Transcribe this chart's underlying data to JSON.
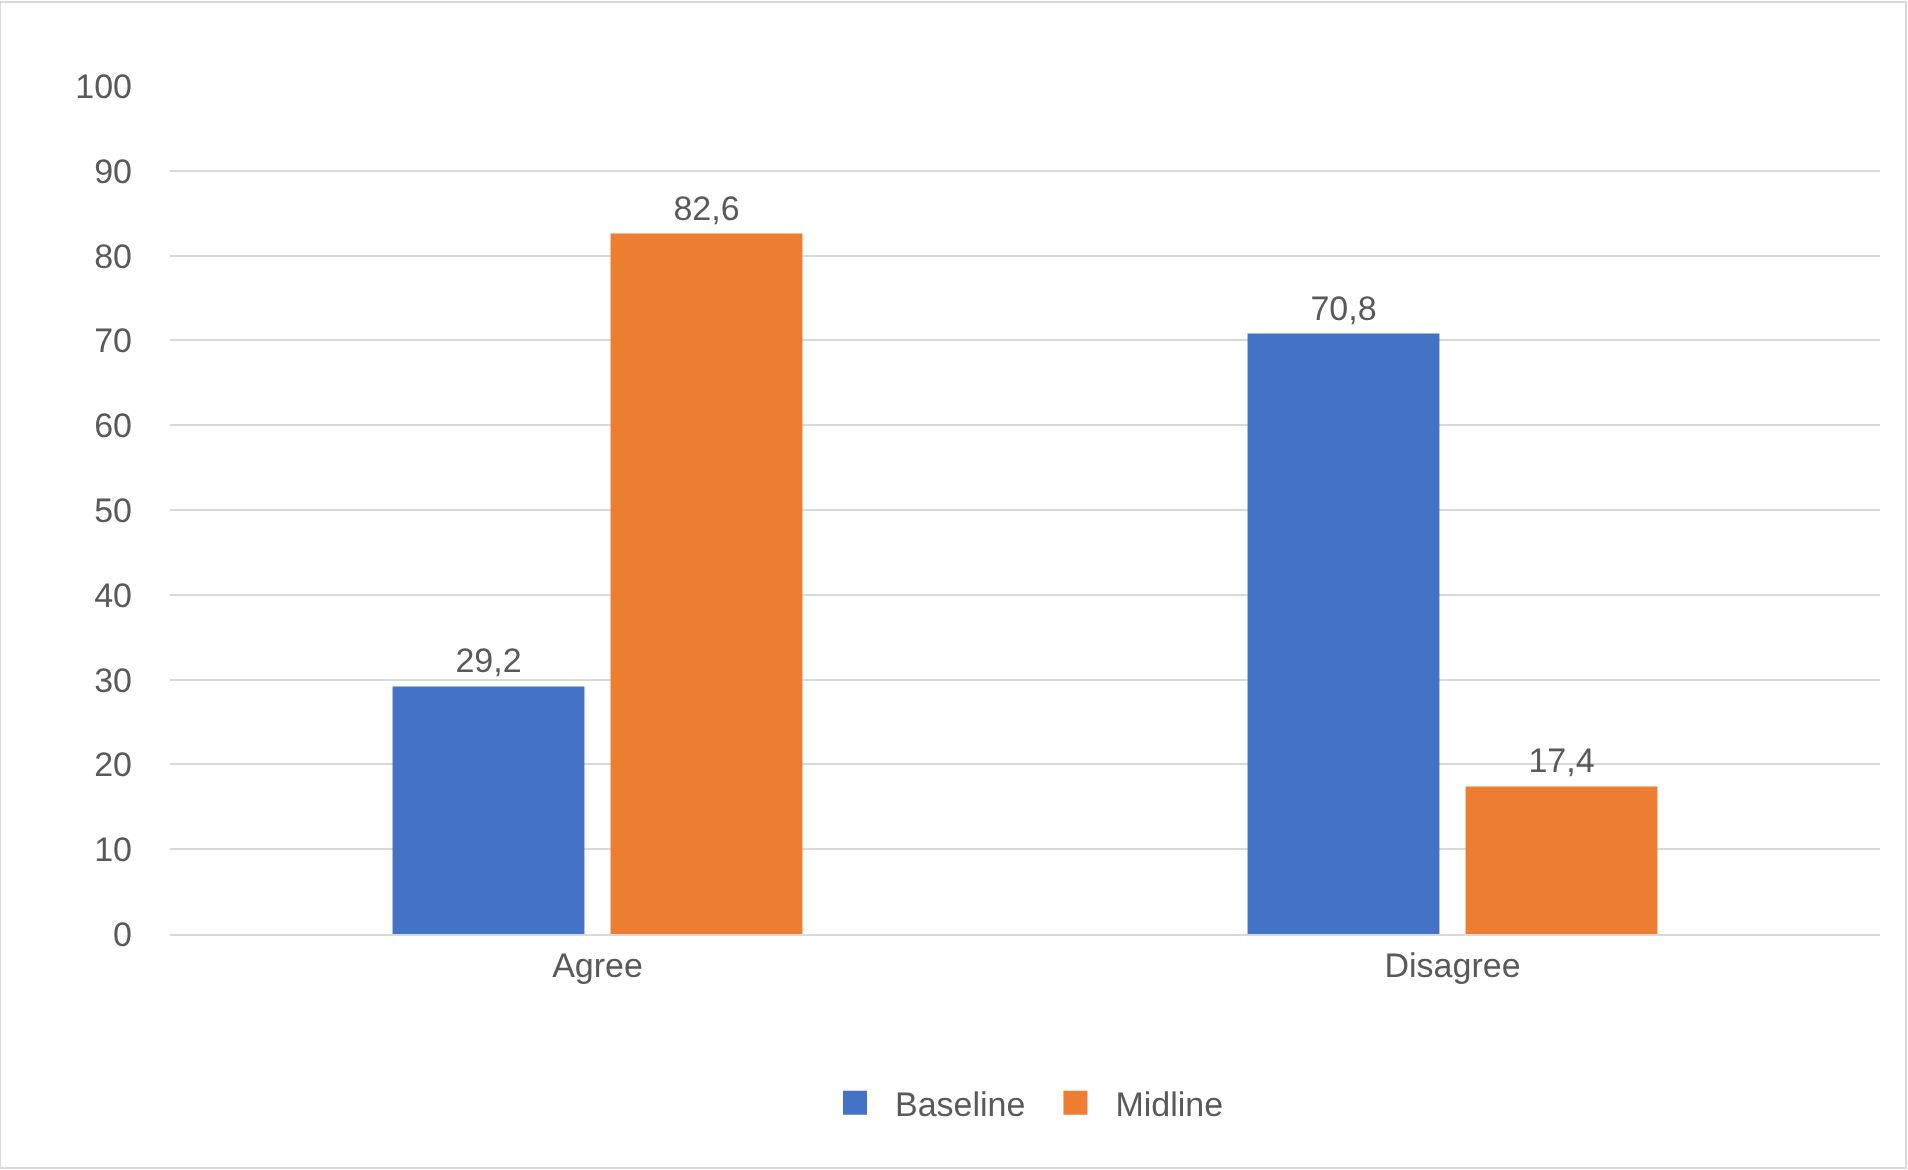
{
  "chart_data": {
    "type": "bar",
    "categories": [
      "Agree",
      "Disagree"
    ],
    "series": [
      {
        "name": "Baseline",
        "color": "#4472c4",
        "values": [
          29.2,
          70.8
        ],
        "value_labels": [
          "29,2",
          "70,8"
        ]
      },
      {
        "name": "Midline",
        "color": "#ed7d31",
        "values": [
          82.6,
          17.4
        ],
        "value_labels": [
          "82,6",
          "17,4"
        ]
      }
    ],
    "ylim": [
      0,
      100
    ],
    "yticks": [
      0,
      10,
      20,
      30,
      40,
      50,
      60,
      70,
      80,
      90,
      100
    ],
    "grid": "y",
    "legend": "bottom"
  }
}
